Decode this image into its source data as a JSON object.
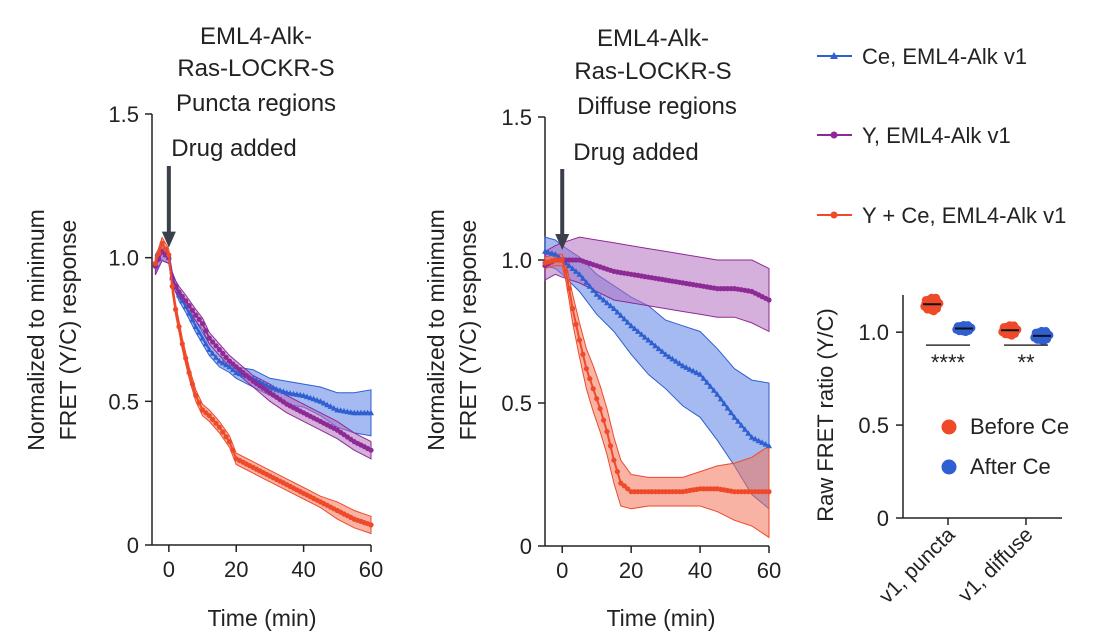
{
  "chart_data": [
    {
      "id": "puncta",
      "type": "line",
      "title_lines": [
        "EML4-Alk-",
        "Ras-LOCKR-S",
        "Puncta regions"
      ],
      "annotation": "Drug added",
      "xlabel": "Time (min)",
      "ylabel_lines": [
        "Normalized to minimum",
        "FRET (Y/C) response"
      ],
      "xlim": [
        -5,
        60
      ],
      "ylim": [
        0,
        1.5
      ],
      "xticks": [
        0,
        20,
        40,
        60
      ],
      "yticks": [
        0,
        0.5,
        1.0,
        1.5
      ],
      "ytick_labels": [
        "0",
        "0.5",
        "1.0",
        "1.5"
      ],
      "drug_time": 0,
      "series": [
        {
          "name": "Ce, EML4-Alk v1",
          "x": [
            -4,
            -2,
            0,
            1,
            2,
            3,
            5,
            8,
            10,
            12,
            15,
            18,
            20,
            25,
            30,
            35,
            40,
            45,
            50,
            55,
            60
          ],
          "y": [
            0.98,
            1.02,
            1.0,
            0.93,
            0.9,
            0.87,
            0.83,
            0.76,
            0.72,
            0.68,
            0.64,
            0.62,
            0.6,
            0.58,
            0.55,
            0.53,
            0.52,
            0.5,
            0.47,
            0.46,
            0.46
          ],
          "band": [
            0.03,
            0.03,
            0.02,
            0.02,
            0.02,
            0.02,
            0.02,
            0.02,
            0.02,
            0.02,
            0.02,
            0.02,
            0.02,
            0.03,
            0.03,
            0.04,
            0.04,
            0.05,
            0.06,
            0.07,
            0.08
          ]
        },
        {
          "name": "Y, EML4-Alk v1",
          "x": [
            -4,
            -2,
            0,
            1,
            2,
            3,
            5,
            8,
            10,
            12,
            15,
            18,
            20,
            25,
            30,
            35,
            40,
            45,
            50,
            55,
            60
          ],
          "y": [
            0.97,
            1.02,
            1.0,
            0.93,
            0.9,
            0.88,
            0.85,
            0.8,
            0.77,
            0.72,
            0.68,
            0.64,
            0.62,
            0.57,
            0.53,
            0.49,
            0.46,
            0.43,
            0.4,
            0.36,
            0.33
          ],
          "band": [
            0.03,
            0.03,
            0.02,
            0.02,
            0.02,
            0.02,
            0.02,
            0.02,
            0.02,
            0.02,
            0.02,
            0.02,
            0.02,
            0.02,
            0.03,
            0.03,
            0.03,
            0.03,
            0.03,
            0.03,
            0.03
          ]
        },
        {
          "name": "Y + Ce, EML4-Alk v1",
          "x": [
            -4,
            -2,
            -1,
            0,
            1,
            2,
            3,
            4,
            5,
            6,
            7,
            8,
            10,
            12,
            15,
            18,
            20,
            25,
            30,
            35,
            40,
            45,
            50,
            55,
            60
          ],
          "y": [
            0.98,
            1.05,
            1.03,
            1.01,
            0.9,
            0.82,
            0.76,
            0.7,
            0.65,
            0.6,
            0.56,
            0.52,
            0.47,
            0.45,
            0.41,
            0.36,
            0.3,
            0.27,
            0.24,
            0.21,
            0.18,
            0.15,
            0.12,
            0.09,
            0.07
          ],
          "band": [
            0.02,
            0.02,
            0.02,
            0.02,
            0.02,
            0.02,
            0.02,
            0.02,
            0.02,
            0.02,
            0.02,
            0.02,
            0.02,
            0.02,
            0.02,
            0.02,
            0.02,
            0.02,
            0.02,
            0.02,
            0.02,
            0.02,
            0.03,
            0.03,
            0.03
          ]
        }
      ]
    },
    {
      "id": "diffuse",
      "type": "line",
      "title_lines": [
        "EML4-Alk-",
        "Ras-LOCKR-S",
        "Diffuse regions"
      ],
      "annotation": "Drug added",
      "xlabel": "Time (min)",
      "ylabel_lines": [
        "Normalized to minimum",
        "FRET (Y/C) response"
      ],
      "xlim": [
        -5,
        60
      ],
      "ylim": [
        0,
        1.5
      ],
      "xticks": [
        0,
        20,
        40,
        60
      ],
      "yticks": [
        0,
        0.5,
        1.0,
        1.5
      ],
      "ytick_labels": [
        "0",
        "0.5",
        "1.0",
        "1.5"
      ],
      "drug_time": 0,
      "series": [
        {
          "name": "Ce, EML4-Alk v1",
          "x": [
            -5,
            -2,
            0,
            5,
            10,
            15,
            20,
            25,
            30,
            35,
            40,
            45,
            50,
            55,
            60
          ],
          "y": [
            1.03,
            1.02,
            1.0,
            0.95,
            0.88,
            0.83,
            0.77,
            0.72,
            0.67,
            0.63,
            0.6,
            0.53,
            0.45,
            0.38,
            0.35
          ],
          "band": [
            0.05,
            0.05,
            0.05,
            0.06,
            0.07,
            0.08,
            0.1,
            0.12,
            0.12,
            0.14,
            0.15,
            0.16,
            0.17,
            0.2,
            0.22
          ]
        },
        {
          "name": "Y, EML4-Alk v1",
          "x": [
            -5,
            -2,
            0,
            5,
            10,
            15,
            20,
            25,
            30,
            35,
            40,
            45,
            50,
            55,
            60
          ],
          "y": [
            0.98,
            1.0,
            1.0,
            1.0,
            0.98,
            0.96,
            0.95,
            0.94,
            0.93,
            0.92,
            0.91,
            0.9,
            0.9,
            0.89,
            0.86
          ],
          "band": [
            0.05,
            0.05,
            0.06,
            0.08,
            0.09,
            0.1,
            0.1,
            0.1,
            0.1,
            0.1,
            0.1,
            0.1,
            0.1,
            0.11,
            0.11
          ]
        },
        {
          "name": "Y + Ce, EML4-Alk v1",
          "x": [
            -5,
            -2,
            0,
            1,
            2,
            3,
            5,
            7,
            9,
            11,
            13,
            15,
            17,
            20,
            25,
            30,
            35,
            40,
            45,
            50,
            55,
            60
          ],
          "y": [
            0.99,
            1.0,
            1.0,
            0.96,
            0.9,
            0.83,
            0.72,
            0.62,
            0.55,
            0.48,
            0.4,
            0.3,
            0.22,
            0.19,
            0.19,
            0.19,
            0.19,
            0.2,
            0.2,
            0.19,
            0.19,
            0.19
          ],
          "band": [
            0.02,
            0.02,
            0.02,
            0.03,
            0.04,
            0.05,
            0.06,
            0.07,
            0.08,
            0.08,
            0.08,
            0.08,
            0.08,
            0.06,
            0.05,
            0.05,
            0.05,
            0.06,
            0.08,
            0.1,
            0.12,
            0.16
          ]
        }
      ]
    },
    {
      "id": "raw",
      "type": "scatter",
      "ylabel": "Raw FRET ratio (Y/C)",
      "ylim": [
        0,
        1.2
      ],
      "yticks": [
        0,
        0.5,
        1.0
      ],
      "ytick_labels": [
        "0",
        "0.5",
        "1.0"
      ],
      "categories": [
        "v1, puncta",
        "v1, diffuse"
      ],
      "significance": [
        "****",
        "**"
      ],
      "groups": [
        {
          "name": "Before Ce",
          "medians": [
            1.15,
            1.01
          ],
          "spread": [
            0.04,
            0.03
          ]
        },
        {
          "name": "After Ce",
          "medians": [
            1.02,
            0.98
          ],
          "spread": [
            0.02,
            0.03
          ]
        }
      ]
    }
  ],
  "legend": {
    "lines": [
      {
        "label": "Ce, EML4-Alk v1",
        "color": "#2f5fd0"
      },
      {
        "label": "Y, EML4-Alk v1",
        "color": "#8e2a96"
      },
      {
        "label": "Y + Ce, EML4-Alk v1",
        "color": "#ee4a2a"
      }
    ],
    "dots": [
      {
        "label": "Before Ce",
        "color": "#ee4a2a"
      },
      {
        "label": "After Ce",
        "color": "#2f5fd0"
      }
    ]
  },
  "colors": {
    "ce": "#2f5fd0",
    "y": "#8e2a96",
    "yce": "#ee4a2a",
    "ce_band": "#5b82e6",
    "y_band": "#b36fbf",
    "yce_band": "#f2755a",
    "arrow": "#3a3f4a",
    "axis": "#222222"
  }
}
